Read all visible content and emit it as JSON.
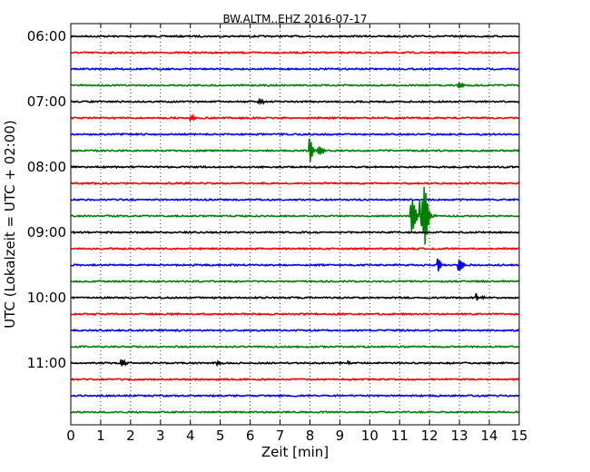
{
  "chart_data": {
    "type": "line",
    "title": "BW.ALTM..EHZ 2016-07-17",
    "xlabel": "Zeit  [min]",
    "ylabel": "UTC (Lokalzeit = UTC + 02:00)",
    "xlim": [
      0,
      15
    ],
    "x_ticks": [
      "0",
      "1",
      "2",
      "3",
      "4",
      "5",
      "6",
      "7",
      "8",
      "9",
      "10",
      "11",
      "12",
      "13",
      "14",
      "15"
    ],
    "y_tick_labels": [
      "06:00",
      "07:00",
      "08:00",
      "09:00",
      "10:00",
      "11:00"
    ],
    "grid": "vertical dotted",
    "line_colors": [
      "#000000",
      "#ff0000",
      "#0000ff",
      "#008000"
    ],
    "series": [
      {
        "start": "06:00",
        "color": "#000000",
        "events": []
      },
      {
        "start": "06:15",
        "color": "#ff0000",
        "events": []
      },
      {
        "start": "06:30",
        "color": "#0000ff",
        "events": []
      },
      {
        "start": "06:45",
        "color": "#008000",
        "events": [
          {
            "t": 13.0,
            "amp": 0.2
          }
        ]
      },
      {
        "start": "07:00",
        "color": "#000000",
        "events": [
          {
            "t": 6.3,
            "amp": 0.2
          }
        ]
      },
      {
        "start": "07:15",
        "color": "#ff0000",
        "events": [
          {
            "t": 4.0,
            "amp": 0.15
          }
        ]
      },
      {
        "start": "07:30",
        "color": "#0000ff",
        "events": []
      },
      {
        "start": "07:45",
        "color": "#008000",
        "events": [
          {
            "t": 8.0,
            "amp": 0.75
          },
          {
            "t": 8.3,
            "amp": 0.3
          }
        ]
      },
      {
        "start": "08:00",
        "color": "#000000",
        "events": []
      },
      {
        "start": "08:15",
        "color": "#ff0000",
        "events": []
      },
      {
        "start": "08:30",
        "color": "#0000ff",
        "events": []
      },
      {
        "start": "08:45",
        "color": "#008000",
        "events": [
          {
            "t": 11.4,
            "amp": 1.5
          },
          {
            "t": 11.7,
            "amp": 3.5
          },
          {
            "t": 11.85,
            "amp": 1.0
          }
        ]
      },
      {
        "start": "09:00",
        "color": "#000000",
        "events": []
      },
      {
        "start": "09:15",
        "color": "#ff0000",
        "events": []
      },
      {
        "start": "09:30",
        "color": "#0000ff",
        "events": [
          {
            "t": 12.3,
            "amp": 0.4
          },
          {
            "t": 13.0,
            "amp": 0.45
          }
        ]
      },
      {
        "start": "09:45",
        "color": "#008000",
        "events": []
      },
      {
        "start": "10:00",
        "color": "#000000",
        "events": [
          {
            "t": 13.6,
            "amp": 0.35
          }
        ]
      },
      {
        "start": "10:15",
        "color": "#ff0000",
        "events": []
      },
      {
        "start": "10:30",
        "color": "#0000ff",
        "events": []
      },
      {
        "start": "10:45",
        "color": "#008000",
        "events": []
      },
      {
        "start": "11:00",
        "color": "#000000",
        "events": [
          {
            "t": 1.7,
            "amp": 0.25
          },
          {
            "t": 4.9,
            "amp": 0.15
          },
          {
            "t": 9.3,
            "amp": 0.1
          }
        ]
      },
      {
        "start": "11:15",
        "color": "#ff0000",
        "events": []
      },
      {
        "start": "11:30",
        "color": "#0000ff",
        "events": []
      },
      {
        "start": "11:45",
        "color": "#008000",
        "events": []
      }
    ]
  }
}
